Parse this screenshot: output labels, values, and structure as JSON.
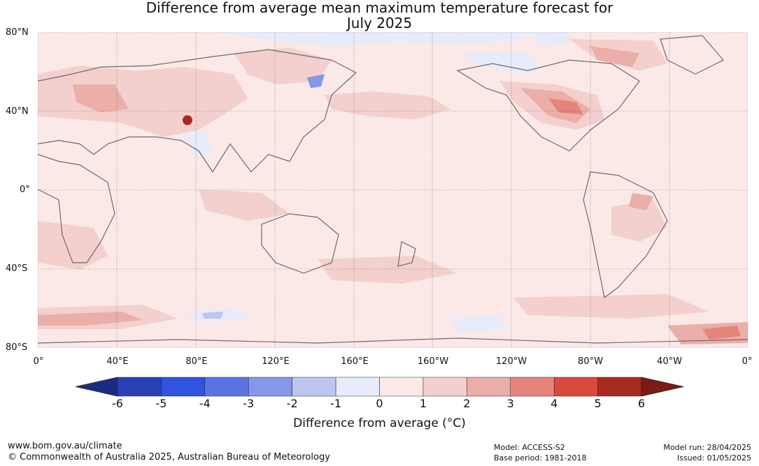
{
  "title_line1": "Difference from average mean maximum temperature forecast for",
  "title_line2": "July 2025",
  "map": {
    "lat_labels": [
      "80°N",
      "40°N",
      "0°",
      "40°S",
      "80°S"
    ],
    "lon_labels": [
      "0°",
      "40°E",
      "80°E",
      "120°E",
      "160°E",
      "160°W",
      "120°W",
      "80°W",
      "40°W",
      "0°"
    ]
  },
  "colorbar": {
    "ticks": [
      "-6",
      "-5",
      "-4",
      "-3",
      "-2",
      "-1",
      "0",
      "1",
      "2",
      "3",
      "4",
      "5",
      "6"
    ],
    "colors": [
      "#1d2a82",
      "#2a41b5",
      "#3153e0",
      "#5a73e2",
      "#8597e8",
      "#bdc6f1",
      "#e7ebfa",
      "#fbe9e7",
      "#f3d0cd",
      "#ebaea9",
      "#e5847b",
      "#d94a3d",
      "#a82b22",
      "#7a1b17"
    ],
    "label": "Difference from average (°C)"
  },
  "footer": {
    "website": "www.bom.gov.au/climate",
    "copyright": "© Commonwealth of Australia 2025, Australian Bureau of Meteorology",
    "model": "Model: ACCESS-S2",
    "base_period": "Base period: 1981-2018",
    "model_run": "Model run: 28/04/2025",
    "issued": "Issued: 01/05/2025"
  }
}
